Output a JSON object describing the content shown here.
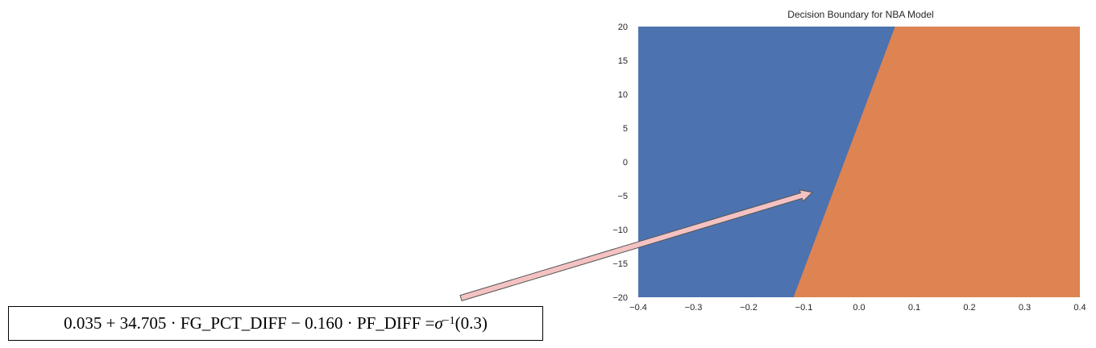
{
  "chart_data": {
    "type": "area",
    "title": "Decision Boundary for NBA Model",
    "xlabel": "",
    "ylabel": "",
    "xlim": [
      -0.4,
      0.4
    ],
    "ylim": [
      -20,
      20
    ],
    "x_ticks": [
      "−0.4",
      "−0.3",
      "−0.2",
      "−0.1",
      "0.0",
      "0.1",
      "0.2",
      "0.3",
      "0.4"
    ],
    "y_ticks": [
      "20",
      "15",
      "10",
      "5",
      "0",
      "−5",
      "−10",
      "−15",
      "−20"
    ],
    "grid": false,
    "boundary_line": {
      "x": [
        -0.118,
        0.066
      ],
      "y": [
        -20,
        20
      ]
    },
    "regions": [
      {
        "side": "left",
        "color": "#4c72b0"
      },
      {
        "side": "right",
        "color": "#dd8452"
      }
    ]
  },
  "annotation": {
    "equation": {
      "prefix": "0.035 + 34.705 · FG_PCT_DIFF − 0.160 · PF_DIFF = ",
      "sigma": "σ",
      "superscript": "−1",
      "suffix": "(0.3)"
    },
    "arrow": {
      "target_data_point": [
        -0.085,
        -4.5
      ],
      "fill_color": "#f4c2c2",
      "stroke_color": "#555555"
    }
  }
}
